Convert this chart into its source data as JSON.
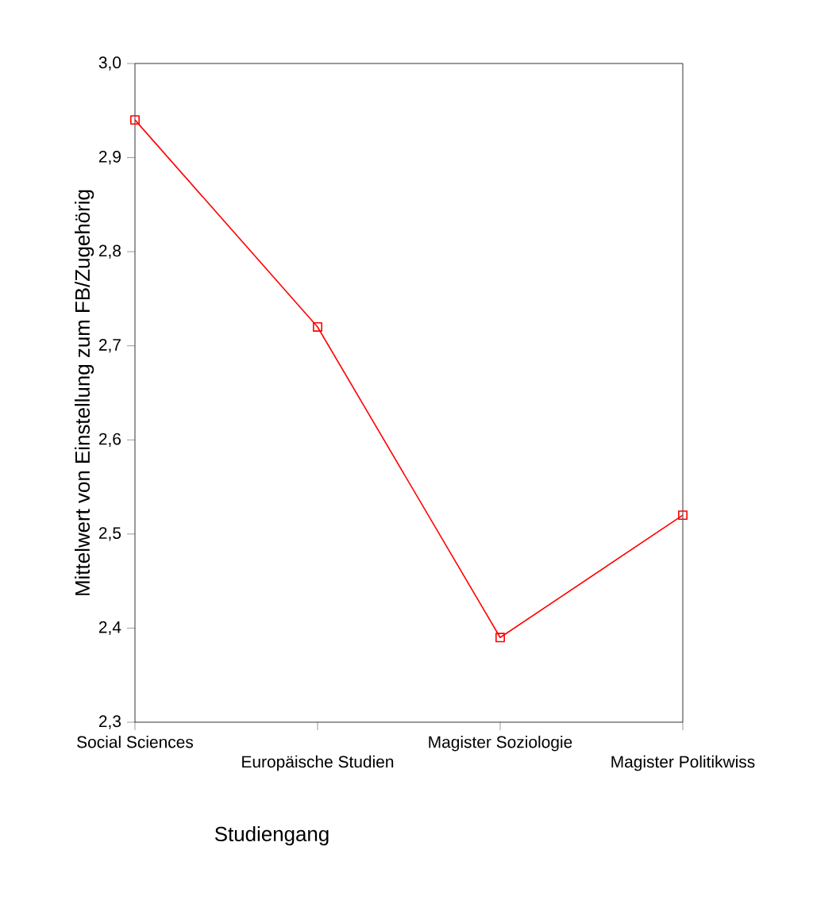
{
  "chart_data": {
    "type": "line",
    "xlabel": "Studiengang",
    "ylabel": "Mittelwert von Einstellung zum FB/Zugehörig",
    "categories": [
      "Social Sciences",
      "Europäische Studien",
      "Magister Soziologie",
      "Magister Politikwiss"
    ],
    "series": [
      {
        "color": "#ff0000",
        "values": [
          2.94,
          2.72,
          2.39,
          2.52
        ]
      }
    ],
    "ylim": [
      2.3,
      3.0
    ],
    "yticks": [
      {
        "value": 2.3,
        "label": "2,3"
      },
      {
        "value": 2.4,
        "label": "2,4"
      },
      {
        "value": 2.5,
        "label": "2,5"
      },
      {
        "value": 2.6,
        "label": "2,6"
      },
      {
        "value": 2.7,
        "label": "2,7"
      },
      {
        "value": 2.8,
        "label": "2,8"
      },
      {
        "value": 2.9,
        "label": "2,9"
      },
      {
        "value": 3.0,
        "label": "3,0"
      }
    ],
    "grid": false,
    "marker": "square",
    "line_style": "solid"
  }
}
